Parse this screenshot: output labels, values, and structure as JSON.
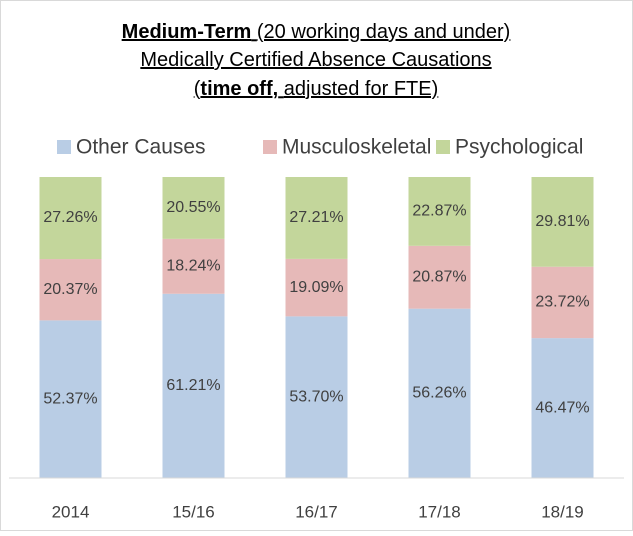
{
  "chart_data": {
    "type": "stacked_bar",
    "title_lines": [
      [
        "Medium-Term",
        "(20 working days and under)"
      ],
      [
        "Medically Certified Absence Causations"
      ],
      [
        "(",
        "time off,",
        "adjusted for FTE)"
      ]
    ],
    "categories": [
      "2014",
      "15/16",
      "16/17",
      "17/18",
      "18/19"
    ],
    "ylim": [
      0,
      100
    ],
    "series": [
      {
        "name": "Other Causes",
        "color": "#b9cde5",
        "values": [
          52.37,
          61.21,
          53.7,
          56.26,
          46.47
        ],
        "value_labels": [
          "52.37%",
          "61.21%",
          "53.70%",
          "56.26%",
          "46.47%"
        ]
      },
      {
        "name": "Musculoskeletal",
        "color": "#e6b9b8",
        "values": [
          20.37,
          18.24,
          19.09,
          20.87,
          23.72
        ],
        "value_labels": [
          "20.37%",
          "18.24%",
          "19.09%",
          "20.87%",
          "23.72%"
        ]
      },
      {
        "name": "Psychological",
        "color": "#c3d69b",
        "values": [
          27.26,
          20.55,
          27.21,
          22.87,
          29.81
        ],
        "value_labels": [
          "27.26%",
          "20.55%",
          "27.21%",
          "22.87%",
          "29.81%"
        ]
      }
    ],
    "legend": "top"
  }
}
